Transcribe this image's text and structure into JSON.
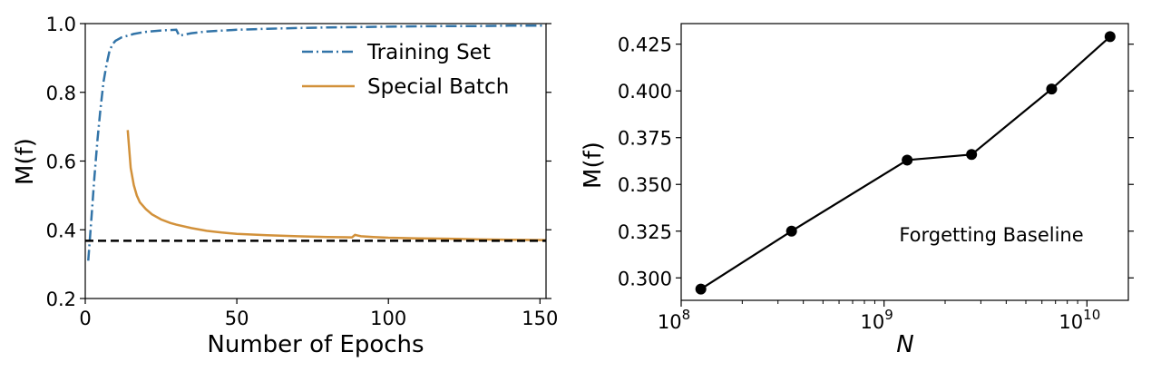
{
  "chart_data": [
    {
      "type": "line",
      "title": "",
      "xlabel": "Number of Epochs",
      "ylabel": "M(f)",
      "xlim": [
        0,
        152
      ],
      "ylim": [
        0.2,
        1.0
      ],
      "xticks": [
        0,
        50,
        100,
        150
      ],
      "yticks": [
        0.2,
        0.4,
        0.6,
        0.8,
        1.0
      ],
      "xtick_labels": [
        "0",
        "50",
        "100",
        "150"
      ],
      "ytick_labels": [
        "0.2",
        "0.4",
        "0.6",
        "0.8",
        "1.0"
      ],
      "grid": false,
      "legend_position": "top-right",
      "series": [
        {
          "name": "Training Set",
          "color": "#3274a8",
          "style": "dashdot",
          "x": [
            1,
            2,
            3,
            4,
            5,
            6,
            7,
            8,
            9,
            10,
            12,
            14,
            16,
            18,
            20,
            25,
            30,
            31,
            35,
            40,
            50,
            60,
            70,
            80,
            90,
            100,
            110,
            120,
            130,
            140,
            152
          ],
          "y": [
            0.31,
            0.43,
            0.55,
            0.66,
            0.75,
            0.83,
            0.88,
            0.92,
            0.94,
            0.95,
            0.96,
            0.965,
            0.97,
            0.973,
            0.976,
            0.98,
            0.982,
            0.965,
            0.972,
            0.977,
            0.982,
            0.985,
            0.987,
            0.989,
            0.99,
            0.991,
            0.992,
            0.993,
            0.993,
            0.994,
            0.994
          ]
        },
        {
          "name": "Special Batch",
          "color": "#d2913a",
          "style": "solid",
          "x": [
            14,
            15,
            16,
            17,
            18,
            20,
            22,
            25,
            28,
            30,
            35,
            40,
            45,
            50,
            60,
            70,
            80,
            88,
            89,
            90,
            91,
            95,
            100,
            110,
            120,
            130,
            140,
            152
          ],
          "y": [
            0.69,
            0.58,
            0.53,
            0.5,
            0.48,
            0.46,
            0.445,
            0.43,
            0.42,
            0.415,
            0.405,
            0.397,
            0.392,
            0.388,
            0.384,
            0.381,
            0.379,
            0.378,
            0.385,
            0.383,
            0.381,
            0.379,
            0.377,
            0.375,
            0.374,
            0.372,
            0.371,
            0.37
          ]
        }
      ],
      "reference_lines": [
        {
          "orientation": "horizontal",
          "y": 0.368,
          "style": "dashed",
          "color": "#000000"
        }
      ]
    },
    {
      "type": "line",
      "title": "",
      "xlabel": "N",
      "ylabel": "M(f)",
      "xscale": "log",
      "xlim": [
        100000000.0,
        16000000000.0
      ],
      "ylim": [
        0.288,
        0.436
      ],
      "xticks": [
        100000000.0,
        1000000000.0,
        10000000000.0
      ],
      "xtick_labels": [
        {
          "base": "10",
          "exp": "8"
        },
        {
          "base": "10",
          "exp": "9"
        },
        {
          "base": "10",
          "exp": "10"
        }
      ],
      "yticks": [
        0.3,
        0.325,
        0.35,
        0.375,
        0.4,
        0.425
      ],
      "ytick_labels": [
        "0.300",
        "0.325",
        "0.350",
        "0.375",
        "0.400",
        "0.425"
      ],
      "grid": false,
      "annotation": "Forgetting Baseline",
      "series": [
        {
          "color": "#000000",
          "marker": "circle",
          "x": [
            125000000.0,
            350000000.0,
            1300000000.0,
            2700000000.0,
            6700000000.0,
            13000000000.0
          ],
          "y": [
            0.294,
            0.325,
            0.363,
            0.366,
            0.401,
            0.429
          ]
        }
      ]
    }
  ]
}
